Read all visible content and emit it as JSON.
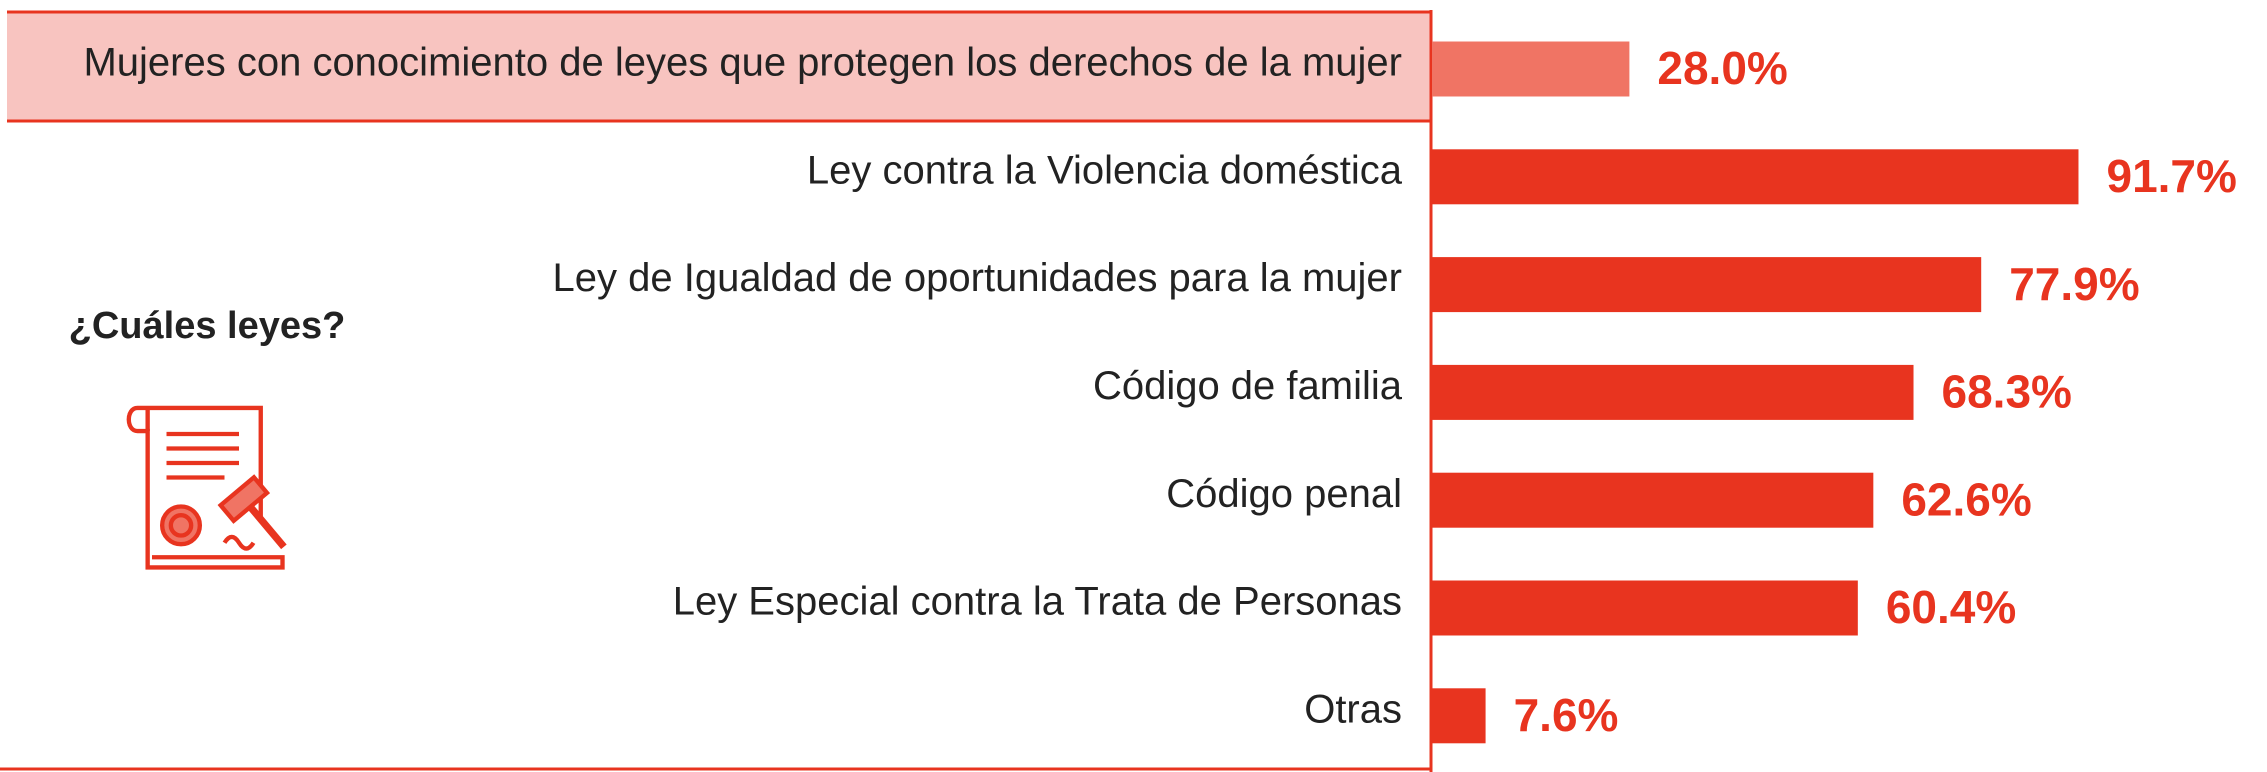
{
  "chart_data": {
    "type": "hbar",
    "annotation": "¿Cuáles leyes?",
    "categories": [
      "Mujeres con conocimiento de leyes que protegen los derechos de la mujer",
      "Ley contra la Violencia doméstica",
      "Ley de Igualdad de oportunidades para la mujer",
      "Código de familia",
      "Código penal",
      "Ley Especial contra la Trata de Personas",
      "Otras"
    ],
    "values": [
      28.0,
      91.7,
      77.9,
      68.3,
      62.6,
      60.4,
      7.6
    ],
    "value_labels": [
      "28.0%",
      "91.7%",
      "77.9%",
      "68.3%",
      "62.6%",
      "60.4%",
      "7.6%"
    ],
    "colors": [
      "#f07464",
      "#e8341f",
      "#e8341f",
      "#e8341f",
      "#e8341f",
      "#e8341f",
      "#e8341f"
    ]
  }
}
